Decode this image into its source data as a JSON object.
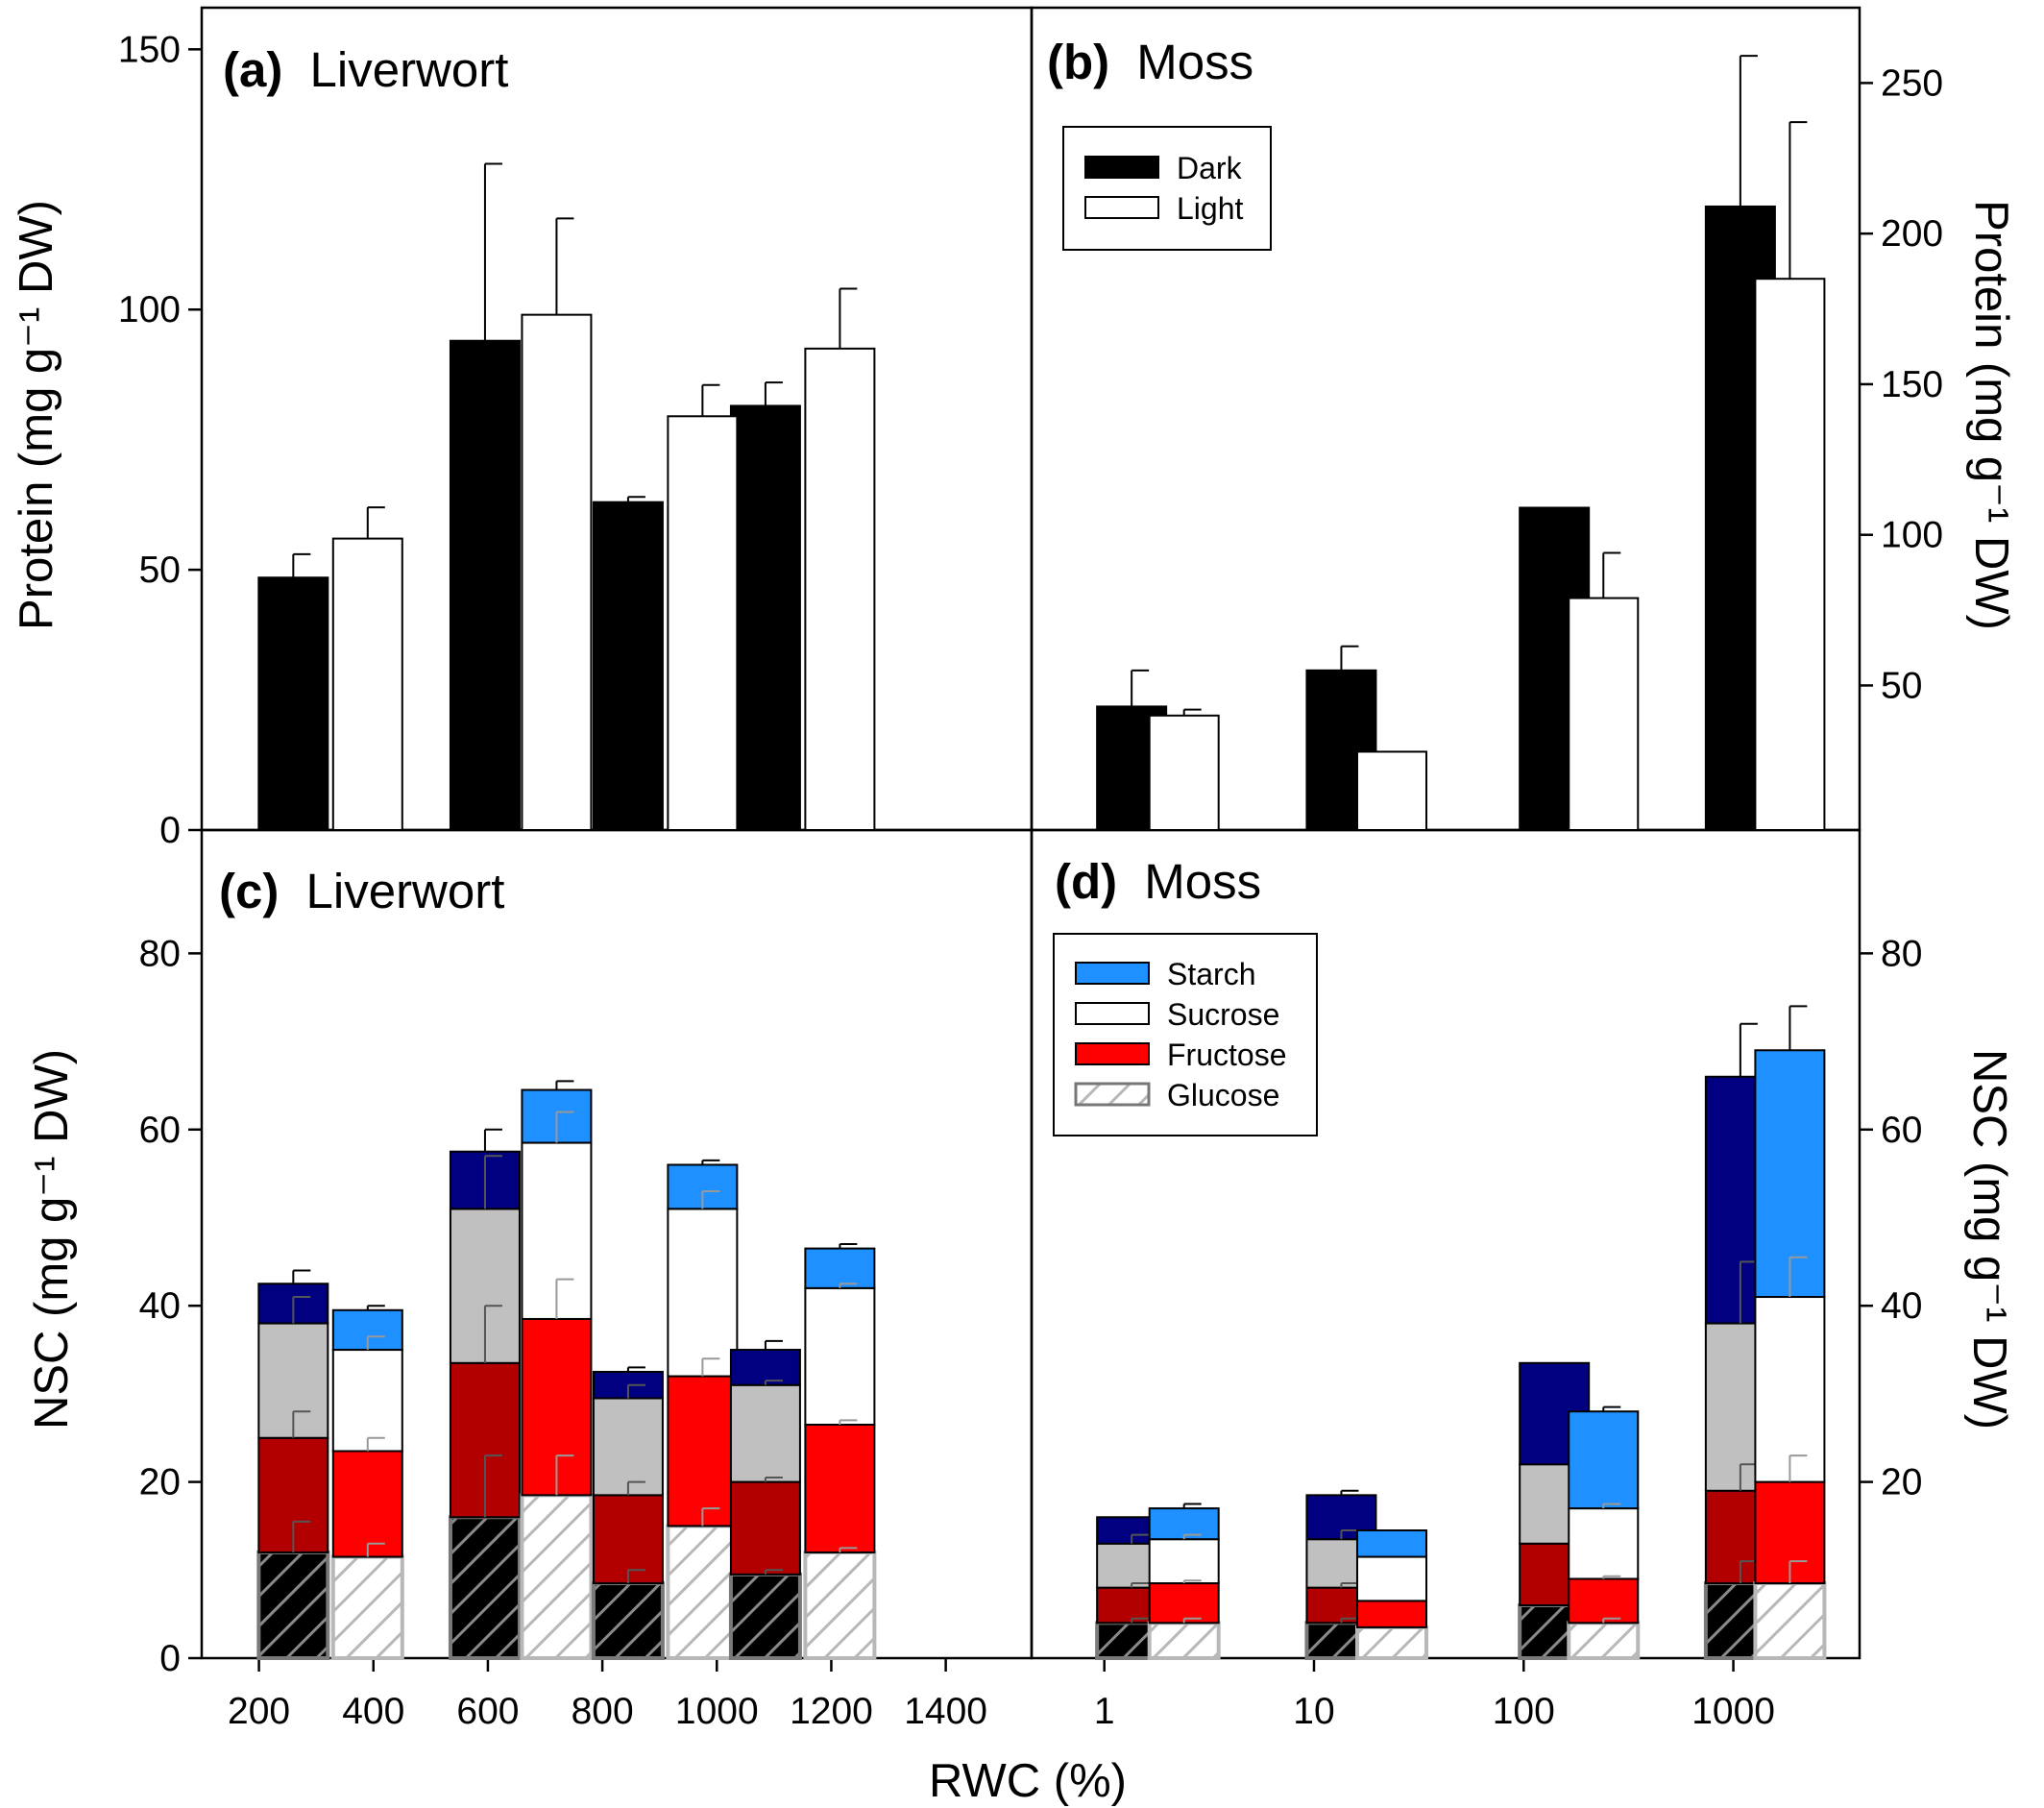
{
  "chart_data": [
    {
      "id": "a",
      "type": "bar",
      "title_letter": "(a)",
      "title_text": "Liverwort",
      "ylabel": "Protein (mg g⁻¹ DW)",
      "ylim": [
        0,
        158
      ],
      "yticks": [
        0,
        50,
        100,
        150
      ],
      "series": [
        {
          "name": "Dark",
          "color": "#000000",
          "x": [
            260,
            595,
            845,
            1085
          ],
          "values": [
            48.5,
            94,
            63,
            81.5
          ],
          "errors": [
            4.5,
            34,
            1,
            4.5
          ]
        },
        {
          "name": "Light",
          "color": "#ffffff",
          "x": [
            390,
            720,
            975,
            1215
          ],
          "values": [
            56,
            99,
            79.5,
            92.5
          ],
          "errors": [
            6,
            18.5,
            6,
            11.5
          ]
        }
      ]
    },
    {
      "id": "b",
      "type": "bar",
      "title_letter": "(b)",
      "title_text": "Moss",
      "ylabel": "Protein (mg g⁻¹ DW)",
      "ylabel_side": "right",
      "ylim": [
        2,
        275
      ],
      "yticks": [
        50,
        100,
        150,
        200,
        250
      ],
      "xscale": "log",
      "legend": {
        "position": "top-left",
        "entries": [
          "Dark",
          "Light"
        ]
      },
      "series": [
        {
          "name": "Dark",
          "color": "#000000",
          "x": [
            1.35,
            13.5,
            140,
            1080
          ],
          "values": [
            43,
            55,
            109,
            209
          ],
          "errors": [
            12,
            8,
            0,
            50
          ]
        },
        {
          "name": "Light",
          "color": "#ffffff",
          "x": [
            2.4,
            23.5,
            240,
            1860
          ],
          "values": [
            40,
            28,
            79,
            185
          ],
          "errors": [
            2,
            0,
            15,
            52
          ]
        }
      ]
    },
    {
      "id": "c",
      "type": "stacked-bar",
      "title_letter": "(c)",
      "title_text": "Liverwort",
      "xlabel": "RWC (%)",
      "ylabel": "NSC (mg g⁻¹ DW)",
      "xlim": [
        100,
        1550
      ],
      "xticks": [
        200,
        400,
        600,
        800,
        1000,
        1200,
        1400
      ],
      "ylim": [
        0,
        94
      ],
      "yticks": [
        0,
        20,
        40,
        60,
        80
      ],
      "components": [
        "Glucose",
        "Fructose",
        "Sucrose",
        "Starch"
      ],
      "colors": {
        "Dark": {
          "Glucose": "#000000",
          "Fructose": "#b20000",
          "Sucrose": "#c0c0c0",
          "Starch": "#000080"
        },
        "Light": {
          "Glucose": "#ffffff",
          "Fructose": "#ff0000",
          "Sucrose": "#ffffff",
          "Starch": "#1e90ff"
        }
      },
      "bars": [
        {
          "group": "Dark",
          "x": 260,
          "stack": [
            12,
            25,
            38,
            42.5
          ],
          "errors": [
            3.5,
            3,
            3,
            1.5
          ]
        },
        {
          "group": "Light",
          "x": 390,
          "stack": [
            11.5,
            23.5,
            35,
            39.5
          ],
          "errors": [
            1.5,
            1.5,
            1.5,
            0.5
          ]
        },
        {
          "group": "Dark",
          "x": 595,
          "stack": [
            16,
            33.5,
            51,
            57.5
          ],
          "errors": [
            7,
            6.5,
            6,
            2.5
          ]
        },
        {
          "group": "Light",
          "x": 720,
          "stack": [
            18.5,
            38.5,
            58.5,
            64.5
          ],
          "errors": [
            4.5,
            4.5,
            3.5,
            1
          ]
        },
        {
          "group": "Dark",
          "x": 845,
          "stack": [
            8.5,
            18.5,
            29.5,
            32.5
          ],
          "errors": [
            1.5,
            1.5,
            1.5,
            0.5
          ]
        },
        {
          "group": "Light",
          "x": 975,
          "stack": [
            15,
            32,
            51,
            56
          ],
          "errors": [
            2,
            2,
            2,
            0.5
          ]
        },
        {
          "group": "Dark",
          "x": 1085,
          "stack": [
            9.5,
            20,
            31,
            35
          ],
          "errors": [
            0.5,
            0.5,
            0.5,
            1
          ]
        },
        {
          "group": "Light",
          "x": 1215,
          "stack": [
            12,
            26.5,
            42,
            46.5
          ],
          "errors": [
            0.5,
            0.5,
            0.5,
            0.5
          ]
        }
      ]
    },
    {
      "id": "d",
      "type": "stacked-bar",
      "title_letter": "(d)",
      "title_text": "Moss",
      "xlabel": "RWC (%)",
      "ylabel": "NSC (mg g⁻¹ DW)",
      "ylabel_side": "right",
      "xscale": "log",
      "xlim": [
        0.45,
        4000
      ],
      "xticks": [
        1,
        10,
        100,
        1000
      ],
      "ylim": [
        0,
        94
      ],
      "yticks": [
        20,
        40,
        60,
        80
      ],
      "legend": {
        "position": "top-left",
        "entries": [
          "Starch",
          "Sucrose",
          "Fructose",
          "Glucose"
        ]
      },
      "bars": [
        {
          "group": "Dark",
          "x": 1.35,
          "stack": [
            4,
            8,
            13,
            16
          ],
          "errors": [
            0.5,
            0.5,
            1,
            0
          ]
        },
        {
          "group": "Light",
          "x": 2.4,
          "stack": [
            4,
            8.5,
            13.5,
            17
          ],
          "errors": [
            0.5,
            0.3,
            0.5,
            0.5
          ]
        },
        {
          "group": "Dark",
          "x": 13.5,
          "stack": [
            4,
            8,
            13.5,
            18.5
          ],
          "errors": [
            0.5,
            0.5,
            1,
            0.5
          ]
        },
        {
          "group": "Light",
          "x": 23.5,
          "stack": [
            3.5,
            6.5,
            11.5,
            14.5
          ],
          "errors": [
            0,
            0,
            0,
            0
          ]
        },
        {
          "group": "Dark",
          "x": 140,
          "stack": [
            6,
            13,
            22,
            33.5
          ],
          "errors": [
            0,
            0,
            0,
            0
          ]
        },
        {
          "group": "Light",
          "x": 240,
          "stack": [
            4,
            9,
            17,
            28
          ],
          "errors": [
            0.5,
            0.3,
            0.5,
            0.5
          ]
        },
        {
          "group": "Dark",
          "x": 1080,
          "stack": [
            8.5,
            19,
            38,
            66
          ],
          "errors": [
            2.5,
            3,
            7,
            6
          ]
        },
        {
          "group": "Light",
          "x": 1860,
          "stack": [
            8.5,
            20,
            41,
            69
          ],
          "errors": [
            2.5,
            3,
            4.5,
            5
          ]
        }
      ]
    }
  ]
}
